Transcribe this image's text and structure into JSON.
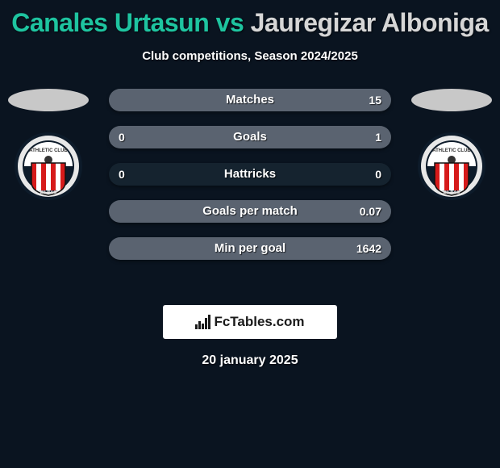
{
  "title": {
    "player1": "Canales Urtasun",
    "vs": " vs ",
    "player2": "Jauregizar Alboniga",
    "color1": "#1ec4a0",
    "color2": "#d6d6d6"
  },
  "subtitle": "Club competitions, Season 2024/2025",
  "avatar_placeholder_color": "#c8c8c8",
  "crest": {
    "outer_color": "#0d1b2a",
    "ring_color": "#e8e8e8",
    "stripes": [
      "#d61a1a",
      "#ffffff",
      "#d61a1a",
      "#ffffff",
      "#d61a1a",
      "#ffffff",
      "#d61a1a"
    ],
    "top_text_bg": "#ffffff"
  },
  "stats": {
    "bg_color": "#15232f",
    "fill_left_color": "#1ec4a0",
    "fill_right_color": "#5a6370",
    "rows": [
      {
        "label": "Matches",
        "left": "",
        "right": "15",
        "left_pct": 0,
        "right_pct": 100
      },
      {
        "label": "Goals",
        "left": "0",
        "right": "1",
        "left_pct": 0,
        "right_pct": 100
      },
      {
        "label": "Hattricks",
        "left": "0",
        "right": "0",
        "left_pct": 0,
        "right_pct": 0
      },
      {
        "label": "Goals per match",
        "left": "",
        "right": "0.07",
        "left_pct": 0,
        "right_pct": 100
      },
      {
        "label": "Min per goal",
        "left": "",
        "right": "1642",
        "left_pct": 0,
        "right_pct": 100
      }
    ]
  },
  "watermark": "FcTables.com",
  "date": "20 january 2025"
}
